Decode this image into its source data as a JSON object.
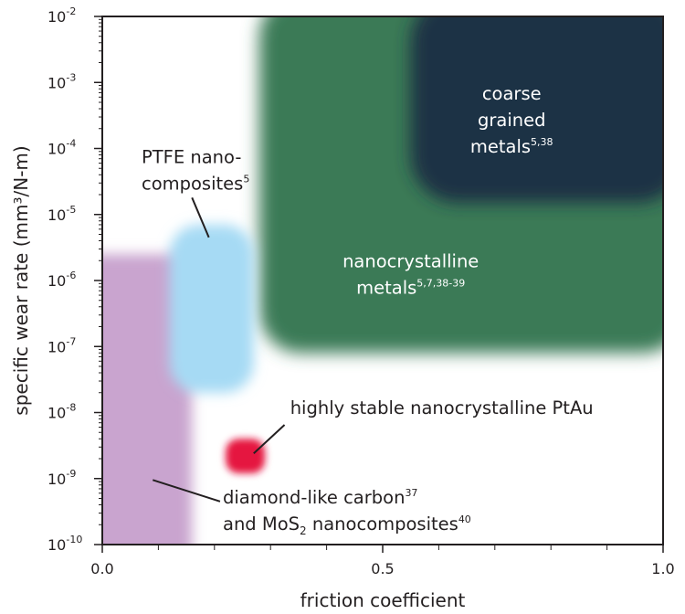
{
  "chart_data": {
    "type": "scatter",
    "xlabel": "friction coefficient",
    "ylabel": "specific wear rate (mm³/N-m)",
    "xlim": [
      0.0,
      1.0
    ],
    "ylim": [
      1e-10,
      0.01
    ],
    "yscale": "log",
    "grid": false,
    "x_ticks": [
      {
        "value": 0.0,
        "label": "0.0"
      },
      {
        "value": 0.5,
        "label": "0.5"
      },
      {
        "value": 1.0,
        "label": "1.0"
      }
    ],
    "y_ticks": [
      {
        "value": 0.01,
        "base": "10",
        "exp": "-2"
      },
      {
        "value": 0.001,
        "base": "10",
        "exp": "-3"
      },
      {
        "value": 0.0001,
        "base": "10",
        "exp": "-4"
      },
      {
        "value": 1e-05,
        "base": "10",
        "exp": "-5"
      },
      {
        "value": 1e-06,
        "base": "10",
        "exp": "-6"
      },
      {
        "value": 1e-07,
        "base": "10",
        "exp": "-7"
      },
      {
        "value": 1e-08,
        "base": "10",
        "exp": "-8"
      },
      {
        "value": 1e-09,
        "base": "10",
        "exp": "-9"
      },
      {
        "value": 1e-10,
        "base": "10",
        "exp": "-10"
      }
    ],
    "regions": [
      {
        "key": "nanocrystalline",
        "x_range": [
          0.28,
          1.0
        ],
        "y_range": [
          8e-08,
          0.01
        ],
        "color": "#3b7a57",
        "label_lines": [
          [
            {
              "t": "nanocrystalline"
            }
          ],
          [
            {
              "t": "metals"
            },
            {
              "t": "5,7,38-39",
              "sup": true
            }
          ]
        ],
        "label_at": [
          0.55,
          1.6e-06
        ],
        "label_color": "#ffffff"
      },
      {
        "key": "coarse",
        "x_range": [
          0.55,
          1.0
        ],
        "y_range": [
          1.5e-05,
          0.01
        ],
        "color": "#1c3144",
        "label_lines": [
          [
            {
              "t": "coarse"
            }
          ],
          [
            {
              "t": "grained"
            }
          ],
          [
            {
              "t": "metals"
            },
            {
              "t": "5,38",
              "sup": true
            }
          ]
        ],
        "label_at": [
          0.73,
          0.00055
        ],
        "label_color": "#ffffff"
      },
      {
        "key": "dlc",
        "x_range": [
          0.0,
          0.16
        ],
        "y_range": [
          1e-10,
          2.5e-06
        ],
        "color": "#c9a4cf",
        "label_lines": [
          [
            {
              "t": "diamond-like carbon"
            },
            {
              "t": "37",
              "sup": true
            }
          ],
          [
            {
              "t": "and MoS"
            },
            {
              "t": "2",
              "sub": true
            },
            {
              "t": " nanocomposites"
            },
            {
              "t": "40",
              "sup": true
            }
          ]
        ],
        "label_at": [
          0.215,
          4.2e-10
        ],
        "label_color": "#231f20",
        "label_anchor": "start"
      },
      {
        "key": "ptfe",
        "x_range": [
          0.12,
          0.27
        ],
        "y_range": [
          2e-08,
          7e-06
        ],
        "color": "#a6daf4",
        "label_lines": [
          [
            {
              "t": "PTFE nano-"
            }
          ],
          [
            {
              "t": "composites"
            },
            {
              "t": "5",
              "sup": true
            }
          ]
        ],
        "label_at": [
          0.07,
          6e-05
        ],
        "label_color": "#231f20",
        "label_anchor": "start"
      },
      {
        "key": "ptau",
        "x_range": [
          0.22,
          0.29
        ],
        "y_range": [
          1.2e-09,
          4e-09
        ],
        "color": "#e5173f",
        "label_lines": [
          [
            {
              "t": "highly stable nanocrystalline PtAu"
            }
          ]
        ],
        "label_at": [
          0.335,
          9.6e-09
        ],
        "label_color": "#231f20",
        "label_anchor": "start"
      }
    ],
    "leader_lines": [
      {
        "key": "ptfe-leader",
        "from": [
          0.16,
          1.8e-05
        ],
        "to": [
          0.19,
          4.5e-06
        ]
      },
      {
        "key": "ptau-leader",
        "from": [
          0.325,
          6.5e-09
        ],
        "to": [
          0.27,
          2.4e-09
        ]
      },
      {
        "key": "dlc-leader",
        "from": [
          0.09,
          9.5e-10
        ],
        "to": [
          0.21,
          4.5e-10
        ]
      }
    ]
  }
}
